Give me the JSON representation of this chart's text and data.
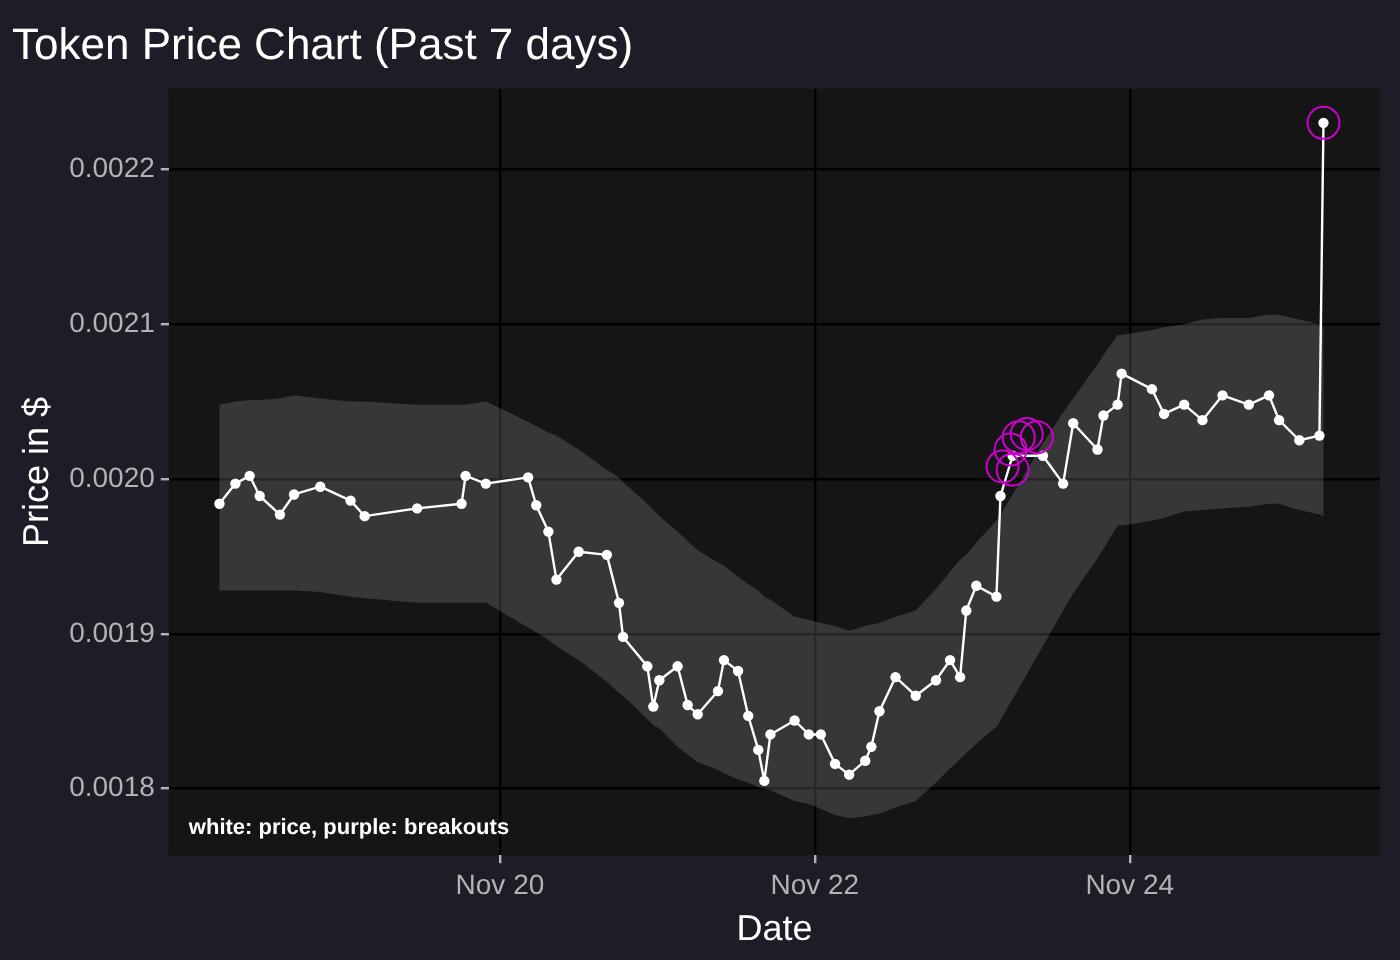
{
  "chart_data": {
    "type": "line",
    "title": "Token Price Chart (Past 7 days)",
    "xlabel": "Date",
    "ylabel": "Price in $",
    "annotations": [
      "white: price, purple: breakouts"
    ],
    "xlim": [
      "--11-17T21:32",
      "--11-25T14:09"
    ],
    "xticks": [
      {
        "value": "--11-20",
        "label": "Nov 20"
      },
      {
        "value": "--11-22",
        "label": "Nov 22"
      },
      {
        "value": "--11-24",
        "label": "Nov 24"
      }
    ],
    "ylim": [
      0.001757,
      0.002252
    ],
    "yticks": [
      0.0018,
      0.0019,
      {
        "value": 0.002,
        "label": "0.0020"
      },
      0.0021,
      0.0022
    ],
    "grid": true,
    "legend": false,
    "series": [
      {
        "color": "#ffffff",
        "marker": "circle",
        "line_style": "solid",
        "x": [
          "--11-18T05:15",
          "--11-18T07:41",
          "--11-18T09:51",
          "--11-18T11:23",
          "--11-18T14:28",
          "--11-18T16:37",
          "--11-18T20:37",
          "--11-19T01:14",
          "--11-19T03:23",
          "--11-19T11:23",
          "--11-19T18:09",
          "--11-19T18:46",
          "--11-19T21:51",
          "--11-20T04:18",
          "--11-20T05:32",
          "--11-20T07:23",
          "--11-20T08:37",
          "--11-20T12:00",
          "--11-20T16:18",
          "--11-20T18:09",
          "--11-20T18:46",
          "--11-20T22:28",
          "--11-20T23:23",
          "--11-21T00:18",
          "--11-21T03:05",
          "--11-21T04:37",
          "--11-21T06:09",
          "--11-21T09:14",
          "--11-21T10:09",
          "--11-21T12:18",
          "--11-21T13:51",
          "--11-21T15:23",
          "--11-21T16:18",
          "--11-21T17:14",
          "--11-21T20:55",
          "--11-21T23:05",
          "--11-22T00:55",
          "--11-22T03:05",
          "--11-22T05:14",
          "--11-22T07:41",
          "--11-22T08:37",
          "--11-22T09:51",
          "--11-22T12:18",
          "--11-22T15:23",
          "--11-22T18:28",
          "--11-22T20:37",
          "--11-22T22:09",
          "--11-22T23:05",
          "--11-23T00:37",
          "--11-23T03:41",
          "--11-23T04:18",
          "--11-23T06:09",
          "--11-23T10:46",
          "--11-23T13:51",
          "--11-23T15:23",
          "--11-23T19:05",
          "--11-23T20:00",
          "--11-23T22:09",
          "--11-23T22:46",
          "--11-24T03:23",
          "--11-24T05:14",
          "--11-24T08:18",
          "--11-24T11:05",
          "--11-24T14:09",
          "--11-24T18:09",
          "--11-24T21:14",
          "--11-24T22:46",
          "--11-25T01:51",
          "--11-25T04:55",
          "--11-25T05:32"
        ],
        "values": [
          0.001984,
          0.001997,
          0.002002,
          0.001989,
          0.001977,
          0.00199,
          0.001995,
          0.001986,
          0.001976,
          0.001981,
          0.001984,
          0.002002,
          0.001997,
          0.002001,
          0.001983,
          0.001966,
          0.001935,
          0.001953,
          0.001951,
          0.00192,
          0.001898,
          0.001879,
          0.001853,
          0.00187,
          0.001879,
          0.001854,
          0.001848,
          0.001863,
          0.001883,
          0.001876,
          0.001847,
          0.001825,
          0.001805,
          0.001835,
          0.001844,
          0.001835,
          0.001835,
          0.001816,
          0.001809,
          0.001818,
          0.001827,
          0.00185,
          0.001872,
          0.00186,
          0.00187,
          0.001883,
          0.001872,
          0.001915,
          0.001931,
          0.001924,
          0.001989,
          0.002015,
          0.002015,
          0.001997,
          0.002036,
          0.002019,
          0.002041,
          0.002048,
          0.002068,
          0.002058,
          0.002042,
          0.002048,
          0.002038,
          0.002054,
          0.002048,
          0.002054,
          0.002038,
          0.002025,
          0.002028,
          0.00223
        ],
        "upper": [
          0.002048,
          0.00205,
          0.002051,
          0.002051,
          0.002052,
          0.002054,
          0.002052,
          0.00205,
          0.00205,
          0.002048,
          0.002048,
          0.002048,
          0.00205,
          0.002037,
          0.002034,
          0.00203,
          0.002028,
          0.002019,
          0.002006,
          0.002001,
          0.001998,
          0.001984,
          0.00198,
          0.001976,
          0.001966,
          0.00196,
          0.001954,
          0.001946,
          0.001944,
          0.001937,
          0.001932,
          0.001928,
          0.001924,
          0.001922,
          0.001911,
          0.001909,
          0.001907,
          0.001905,
          0.001902,
          0.001905,
          0.001906,
          0.001907,
          0.001911,
          0.001915,
          0.001929,
          0.00194,
          0.001948,
          0.001951,
          0.001959,
          0.001973,
          0.001977,
          0.00199,
          0.002023,
          0.002043,
          0.002052,
          0.002074,
          0.00208,
          0.002093,
          0.002093,
          0.002096,
          0.002098,
          0.0021,
          0.002103,
          0.002104,
          0.002104,
          0.002106,
          0.002106,
          0.002103,
          0.0021,
          0.002099
        ],
        "lower": [
          0.001928,
          0.001928,
          0.001928,
          0.001928,
          0.001928,
          0.001928,
          0.001927,
          0.001924,
          0.001923,
          0.00192,
          0.00192,
          0.00192,
          0.00192,
          0.001904,
          0.001901,
          0.001896,
          0.001892,
          0.001883,
          0.001869,
          0.001862,
          0.00186,
          0.001845,
          0.001841,
          0.001839,
          0.001827,
          0.001822,
          0.001817,
          0.001812,
          0.00181,
          0.001806,
          0.001804,
          0.001801,
          0.0018,
          0.001799,
          0.001792,
          0.00179,
          0.001787,
          0.001783,
          0.001781,
          0.001782,
          0.001783,
          0.001784,
          0.001788,
          0.001792,
          0.001804,
          0.001813,
          0.001819,
          0.001823,
          0.001829,
          0.00184,
          0.001844,
          0.001858,
          0.001892,
          0.001915,
          0.001926,
          0.001949,
          0.001955,
          0.00197,
          0.00197,
          0.001973,
          0.001975,
          0.001979,
          0.00198,
          0.001981,
          0.001982,
          0.001984,
          0.001984,
          0.00198,
          0.001977,
          0.001976
        ]
      },
      {
        "type": "scatter",
        "color": "#cc00cc",
        "marker": "circle",
        "x": [
          "--11-23T04:37",
          "--11-23T05:51",
          "--11-23T06:09",
          "--11-23T07:05",
          "--11-23T08:18",
          "--11-23T09:51",
          "--11-25T05:32"
        ],
        "values": [
          0.002008,
          0.002019,
          0.002006,
          0.002027,
          0.002029,
          0.002027,
          0.00223
        ]
      }
    ]
  }
}
